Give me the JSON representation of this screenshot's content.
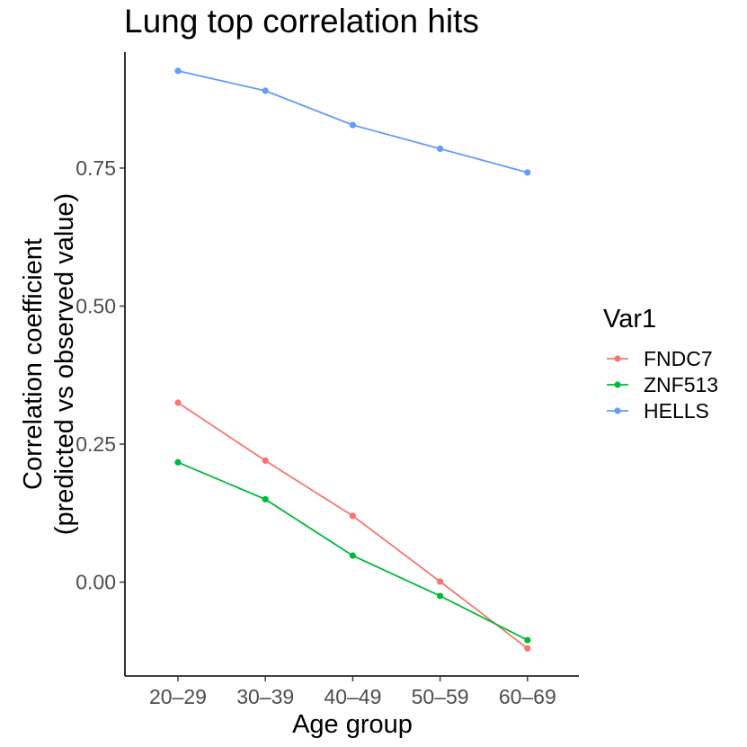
{
  "chart_data": {
    "type": "line",
    "title": "Lung top correlation hits",
    "xlabel": "Age group",
    "ylabel_lines": [
      "Correlation coefficient",
      "(predicted vs observed value)"
    ],
    "categories": [
      "20–29",
      "30–39",
      "40–49",
      "50–59",
      "60–69"
    ],
    "ylim": [
      -0.17,
      0.96
    ],
    "yticks": [
      0.0,
      0.25,
      0.5,
      0.75
    ],
    "ytick_labels": [
      "0.00",
      "0.25",
      "0.50",
      "0.75"
    ],
    "grid": false,
    "legend": {
      "title": "Var1",
      "position": "right"
    },
    "series": [
      {
        "name": "FNDC7",
        "color": "#F8766D",
        "values": [
          0.325,
          0.22,
          0.12,
          0.001,
          -0.12
        ]
      },
      {
        "name": "ZNF513",
        "color": "#00BA38",
        "values": [
          0.217,
          0.15,
          0.048,
          -0.025,
          -0.105
        ]
      },
      {
        "name": "HELLS",
        "color": "#619CFF",
        "values": [
          0.926,
          0.89,
          0.828,
          0.785,
          0.742
        ]
      }
    ]
  }
}
